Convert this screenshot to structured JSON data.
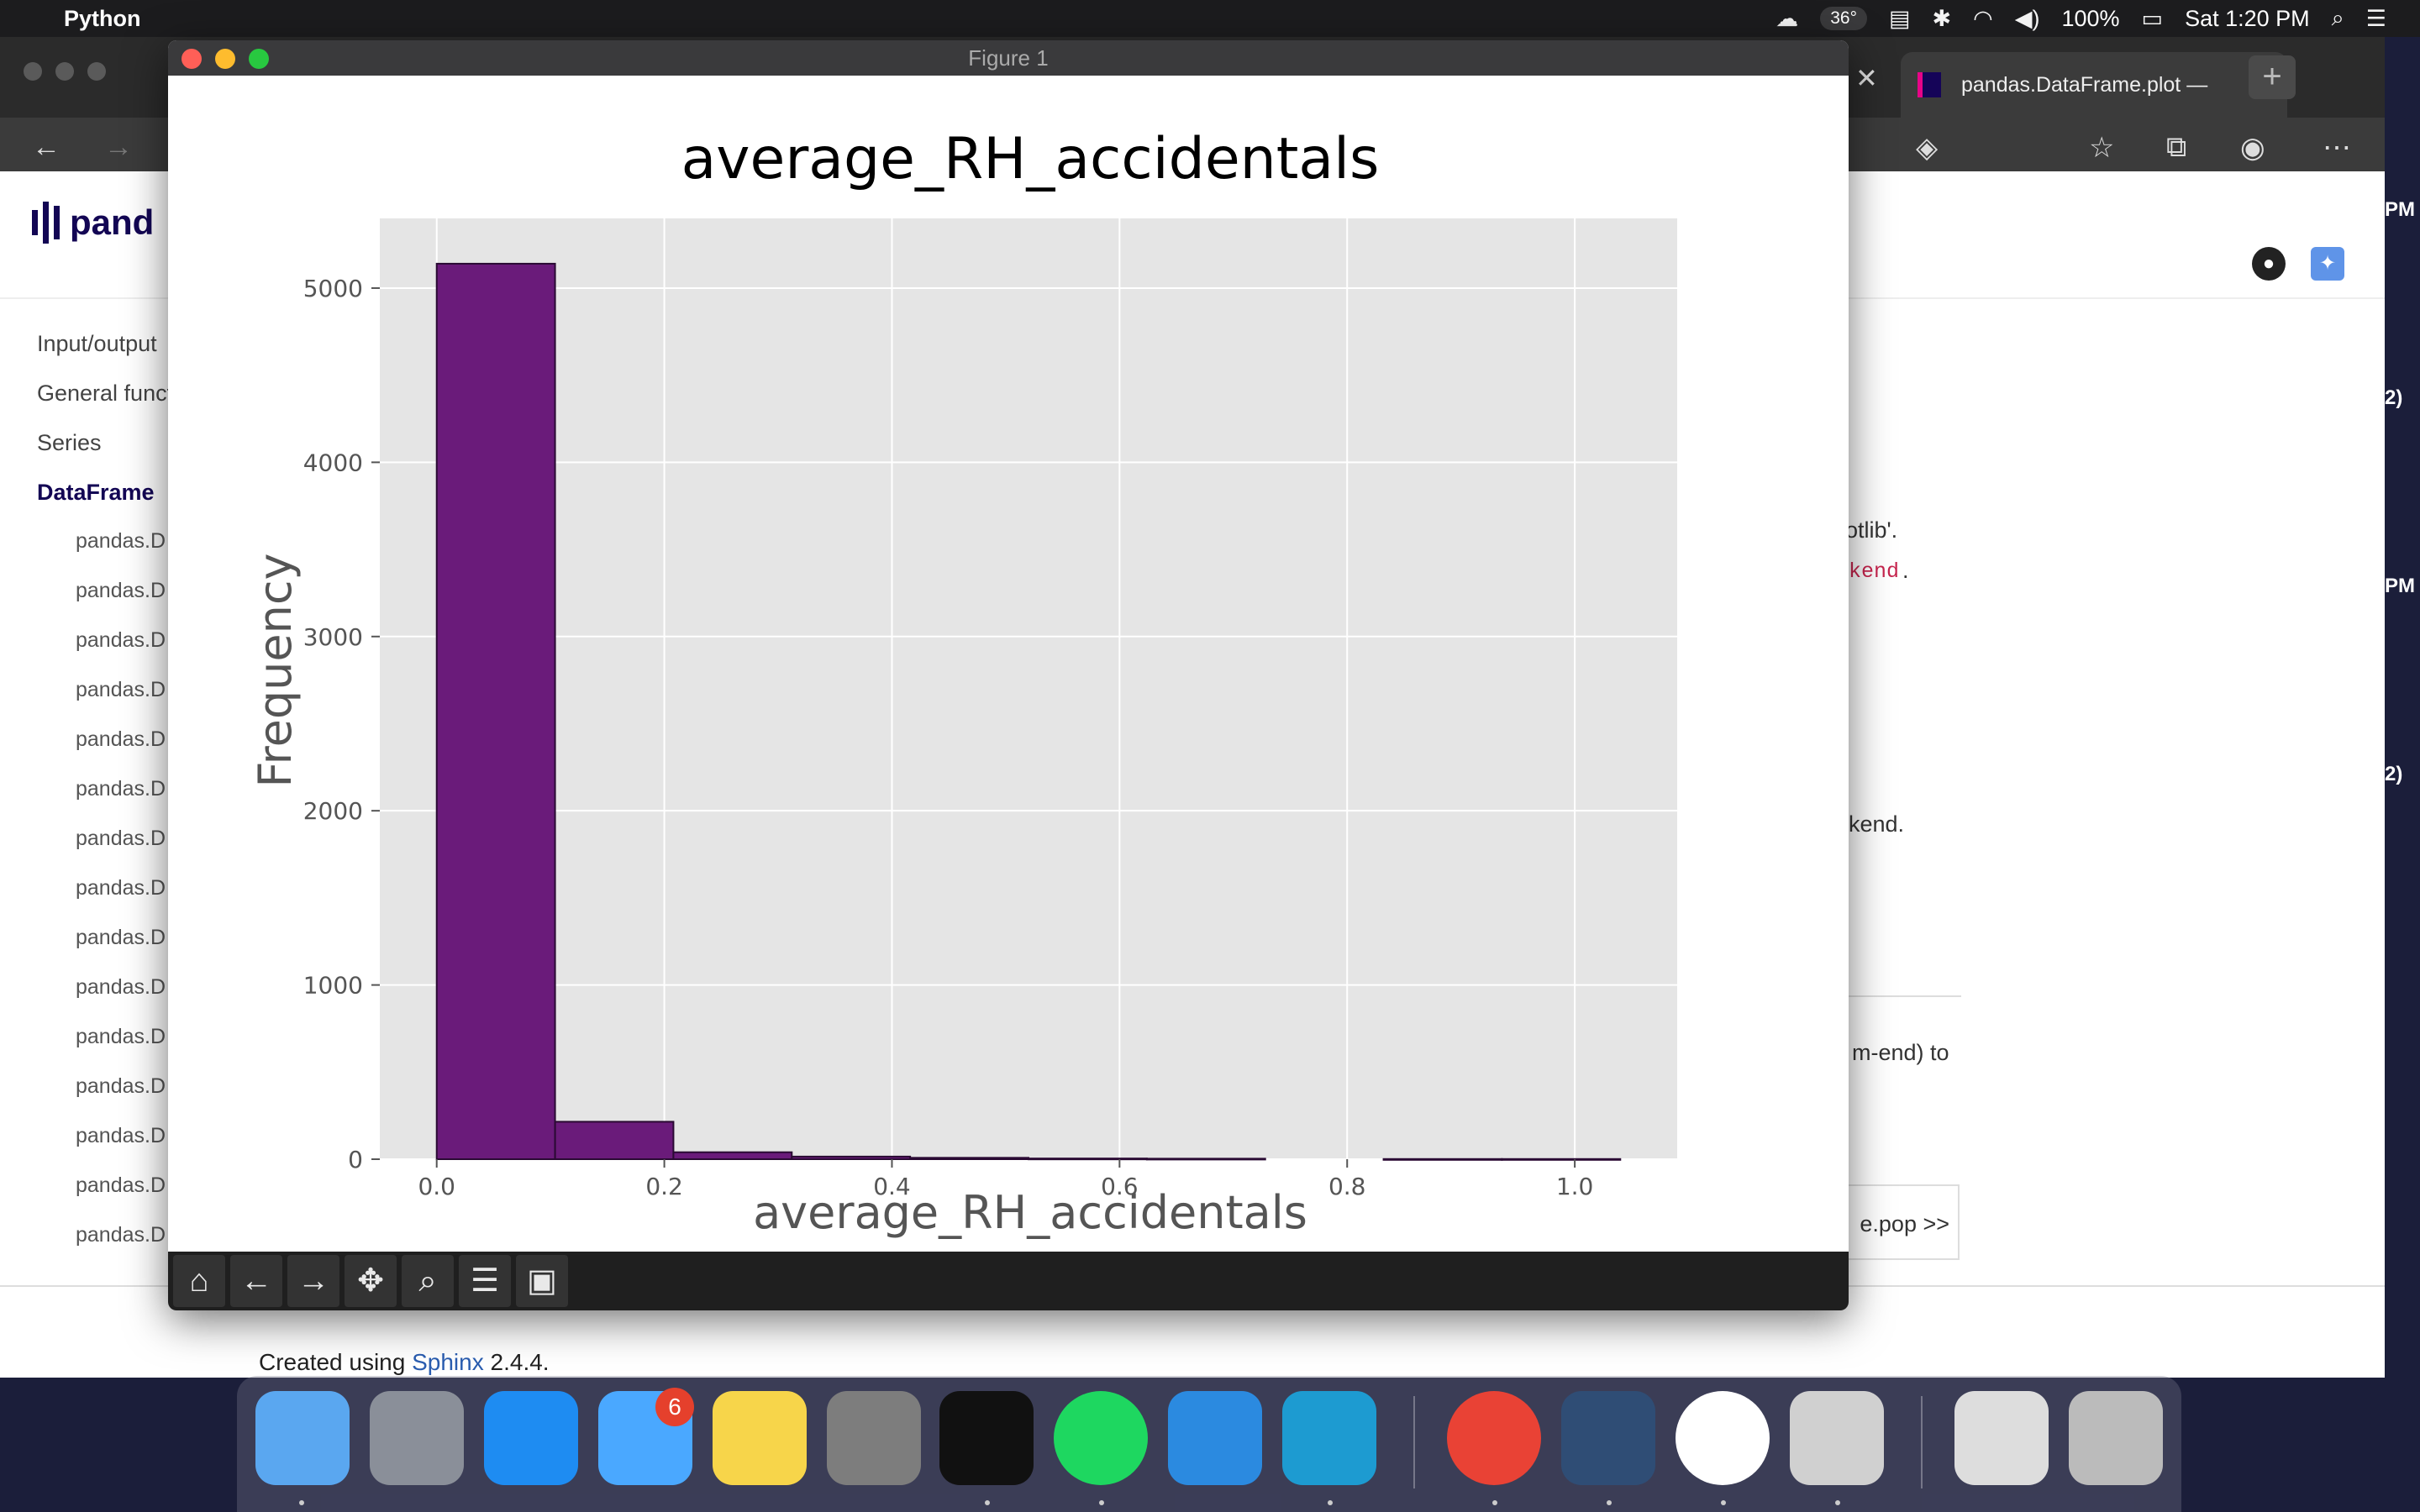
{
  "menubar": {
    "app_name": "Python",
    "temperature": "36°",
    "battery": "100%",
    "clock": "Sat 1:20 PM"
  },
  "browser": {
    "active_tab_title": "pandas.DataFrame.plot —",
    "sidebar": {
      "top_items": [
        "Input/output",
        "General functions",
        "Series",
        "DataFrame"
      ],
      "sub_items": [
        "pandas.D",
        "pandas.D",
        "pandas.D",
        "pandas.D",
        "pandas.D",
        "pandas.D",
        "pandas.D",
        "pandas.D",
        "pandas.D",
        "pandas.D",
        "pandas.D",
        "pandas.D",
        "pandas.D",
        "pandas.D",
        "pandas.D"
      ]
    },
    "logo_text": "pand",
    "right_fragments": {
      "f1": "otlib'.",
      "f2": "kend",
      "f2_dot": ".",
      "f3": "kend.",
      "f4": "m-end) to",
      "next": "e.pop >>"
    },
    "footer": {
      "prefix": "Created using ",
      "link": "Sphinx",
      "suffix": " 2.4.4."
    },
    "clipped_right": [
      "PM",
      "2)",
      "PM",
      "2)"
    ]
  },
  "figure_window": {
    "title": "Figure 1",
    "toolbar": [
      "home-icon",
      "back-icon",
      "forward-icon",
      "pan-icon",
      "zoom-icon",
      "configure-icon",
      "save-icon"
    ]
  },
  "chart_data": {
    "type": "bar",
    "title": "average_RH_accidentals",
    "xlabel": "average_RH_accidentals",
    "ylabel": "Frequency",
    "bin_edges": [
      0.0,
      0.104,
      0.208,
      0.312,
      0.416,
      0.52,
      0.624,
      0.728,
      0.832,
      0.936,
      1.04
    ],
    "values": [
      5140,
      215,
      40,
      15,
      8,
      4,
      3,
      0,
      1,
      1
    ],
    "xlim": [
      -0.05,
      1.09
    ],
    "ylim": [
      0,
      5400
    ],
    "xticks": [
      "0.0",
      "0.2",
      "0.4",
      "0.6",
      "0.8",
      "1.0"
    ],
    "yticks": [
      "0",
      "1000",
      "2000",
      "3000",
      "4000",
      "5000"
    ],
    "bar_color": "#6a1b7a",
    "grid": true,
    "background": "#e5e5e5"
  },
  "dock": {
    "messages_badge": "6"
  },
  "colors": {
    "accent": "#130654",
    "link": "#2a5db0"
  }
}
